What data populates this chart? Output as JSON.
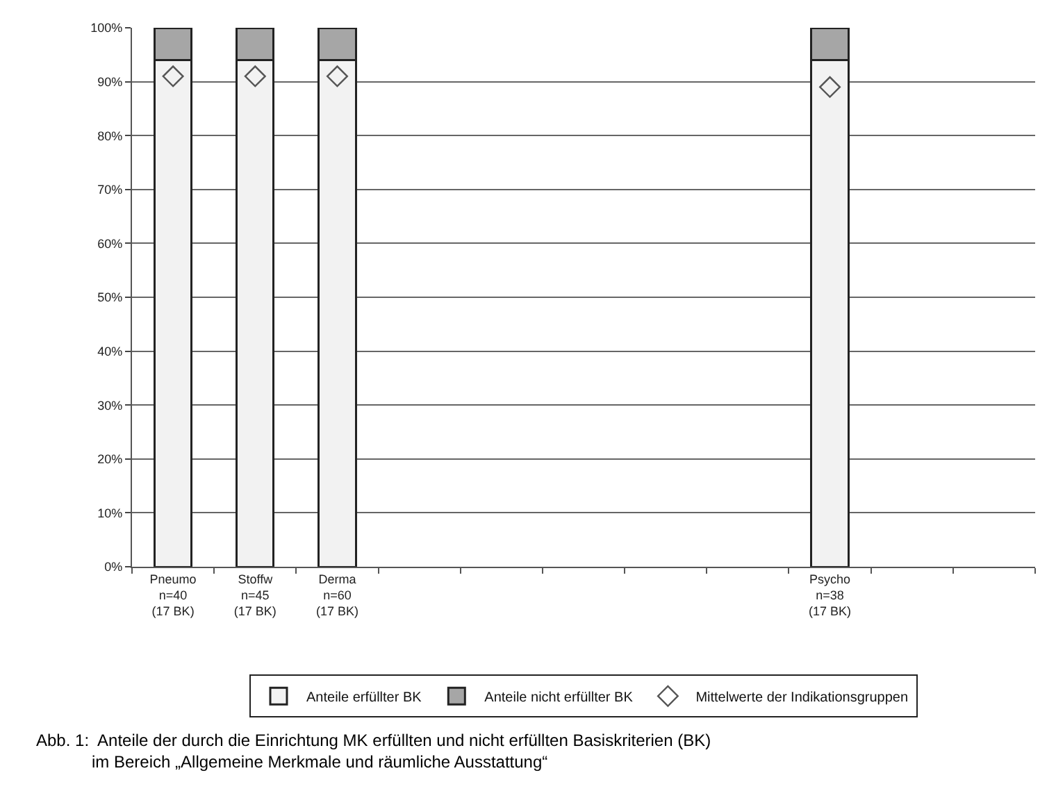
{
  "chart_data": {
    "type": "bar",
    "stacked": true,
    "categories": [
      "Pneumo\nn=40\n(17 BK)",
      "Stoffw\nn=45\n(17 BK)",
      "Derma\nn=60\n(17 BK)",
      null,
      null,
      null,
      null,
      null,
      "Psycho\nn=38\n(17 BK)",
      null,
      null
    ],
    "series": [
      {
        "name": "Anteile erfüllter BK",
        "color": "#f2f2f2",
        "values": [
          94,
          94,
          94,
          null,
          null,
          null,
          null,
          null,
          94,
          null,
          null
        ]
      },
      {
        "name": "Anteile nicht erfüllter BK",
        "color": "#a6a6a6",
        "values": [
          6,
          6,
          6,
          null,
          null,
          null,
          null,
          null,
          6,
          null,
          null
        ]
      },
      {
        "name": "Mittelwerte der Indikationsgruppen",
        "type": "scatter",
        "marker": "diamond",
        "color": "#555555",
        "values": [
          91,
          91,
          91,
          null,
          null,
          null,
          null,
          null,
          89,
          null,
          null
        ]
      }
    ],
    "ylim": [
      0,
      100
    ],
    "yticks": [
      {
        "value": 0,
        "label": "0%"
      },
      {
        "value": 10,
        "label": "10%"
      },
      {
        "value": 20,
        "label": "20%"
      },
      {
        "value": 30,
        "label": "30%"
      },
      {
        "value": 40,
        "label": "40%"
      },
      {
        "value": 50,
        "label": "50%"
      },
      {
        "value": 60,
        "label": "60%"
      },
      {
        "value": 70,
        "label": "70%"
      },
      {
        "value": 80,
        "label": "80%"
      },
      {
        "value": 90,
        "label": "90%"
      },
      {
        "value": 100,
        "label": "100%"
      }
    ],
    "grid": "y",
    "legend": "bottom",
    "annotations": [
      "Abb. 1:  Anteile der durch die Einrichtung MK erfüllten und nicht erfüllten Basiskriterien (BK)\n            im Bereich „Allgemeine Merkmale und räumliche Ausstattung“"
    ]
  }
}
